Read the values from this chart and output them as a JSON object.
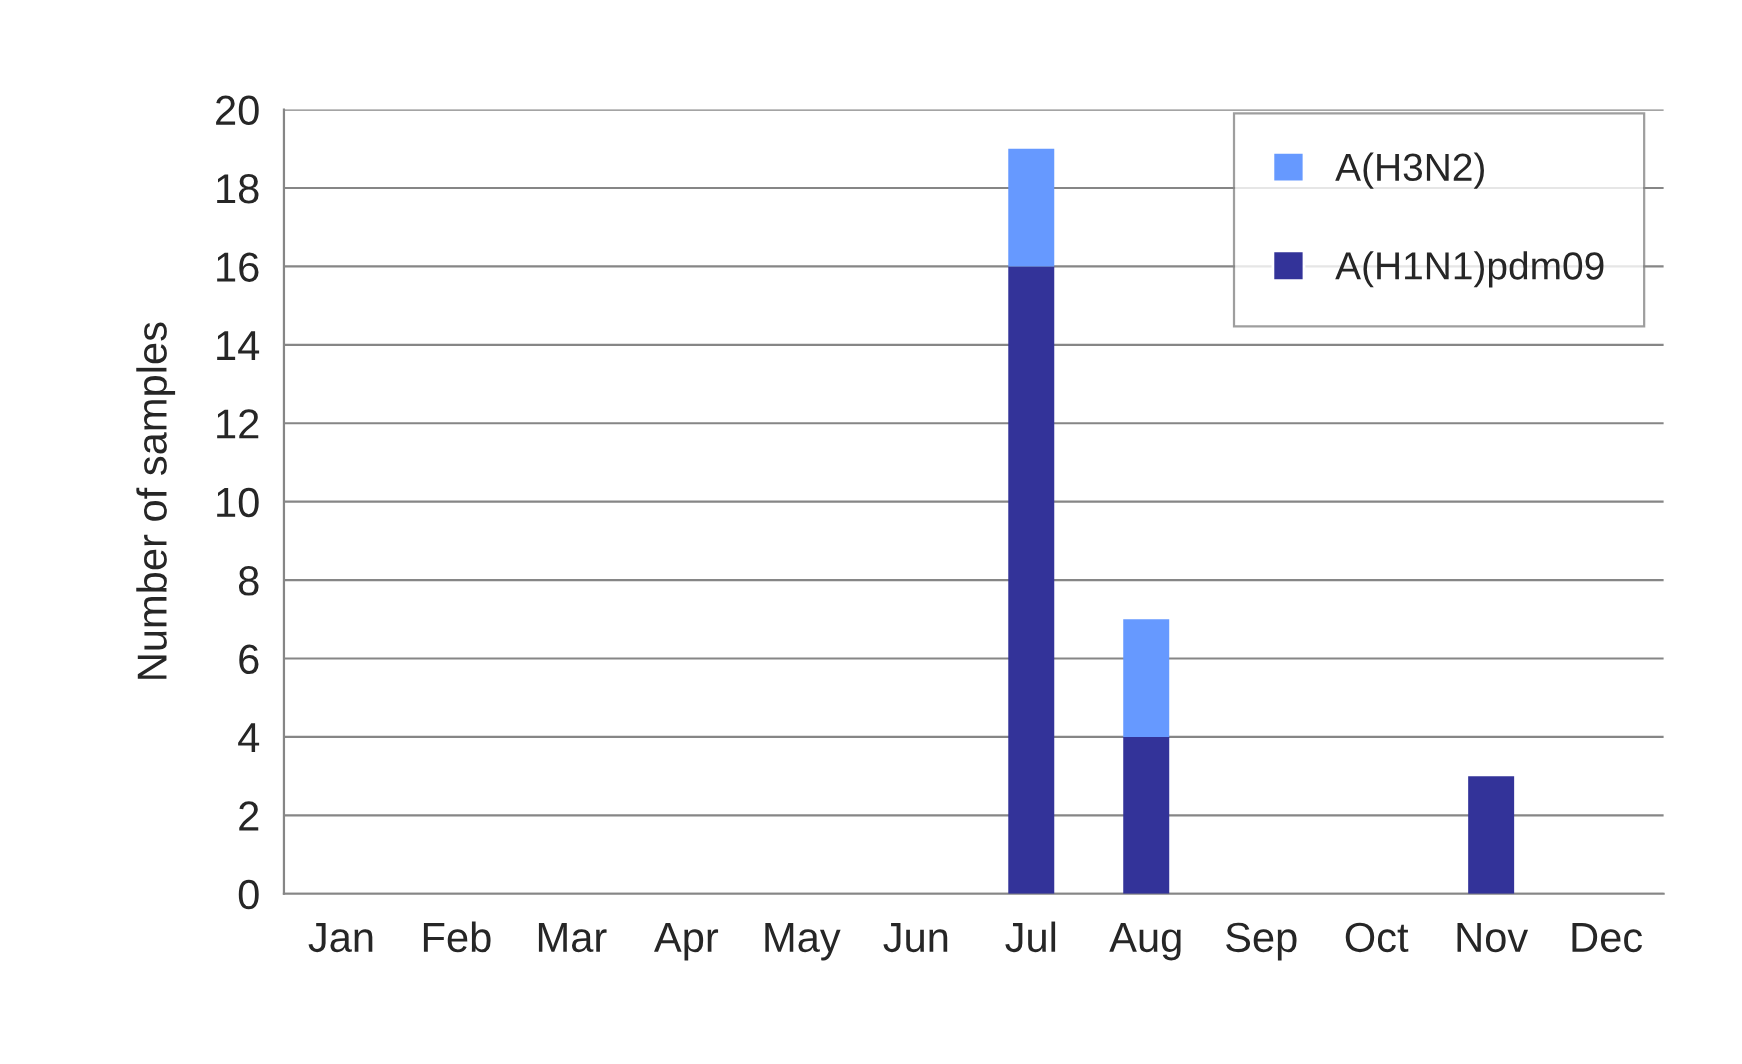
{
  "chart_data": {
    "type": "bar",
    "ylabel": "Number of samples",
    "categories": [
      "Jan",
      "Feb",
      "Mar",
      "Apr",
      "May",
      "Jun",
      "Jul",
      "Aug",
      "Sep",
      "Oct",
      "Nov",
      "Dec"
    ],
    "stacked": true,
    "series": [
      {
        "name": "A(H1N1)pdm09",
        "color": "#333399",
        "values": [
          0,
          0,
          0,
          0,
          0,
          0,
          16,
          4,
          0,
          0,
          3,
          0
        ]
      },
      {
        "name": "A(H3N2)",
        "color": "#6699ff",
        "values": [
          0,
          0,
          0,
          0,
          0,
          0,
          3,
          3,
          0,
          0,
          0,
          0
        ]
      }
    ],
    "ylim": [
      0,
      20
    ],
    "yticks": [
      0,
      2,
      4,
      6,
      8,
      10,
      12,
      14,
      16,
      18,
      20
    ],
    "grid": "y",
    "legend": "top right"
  }
}
